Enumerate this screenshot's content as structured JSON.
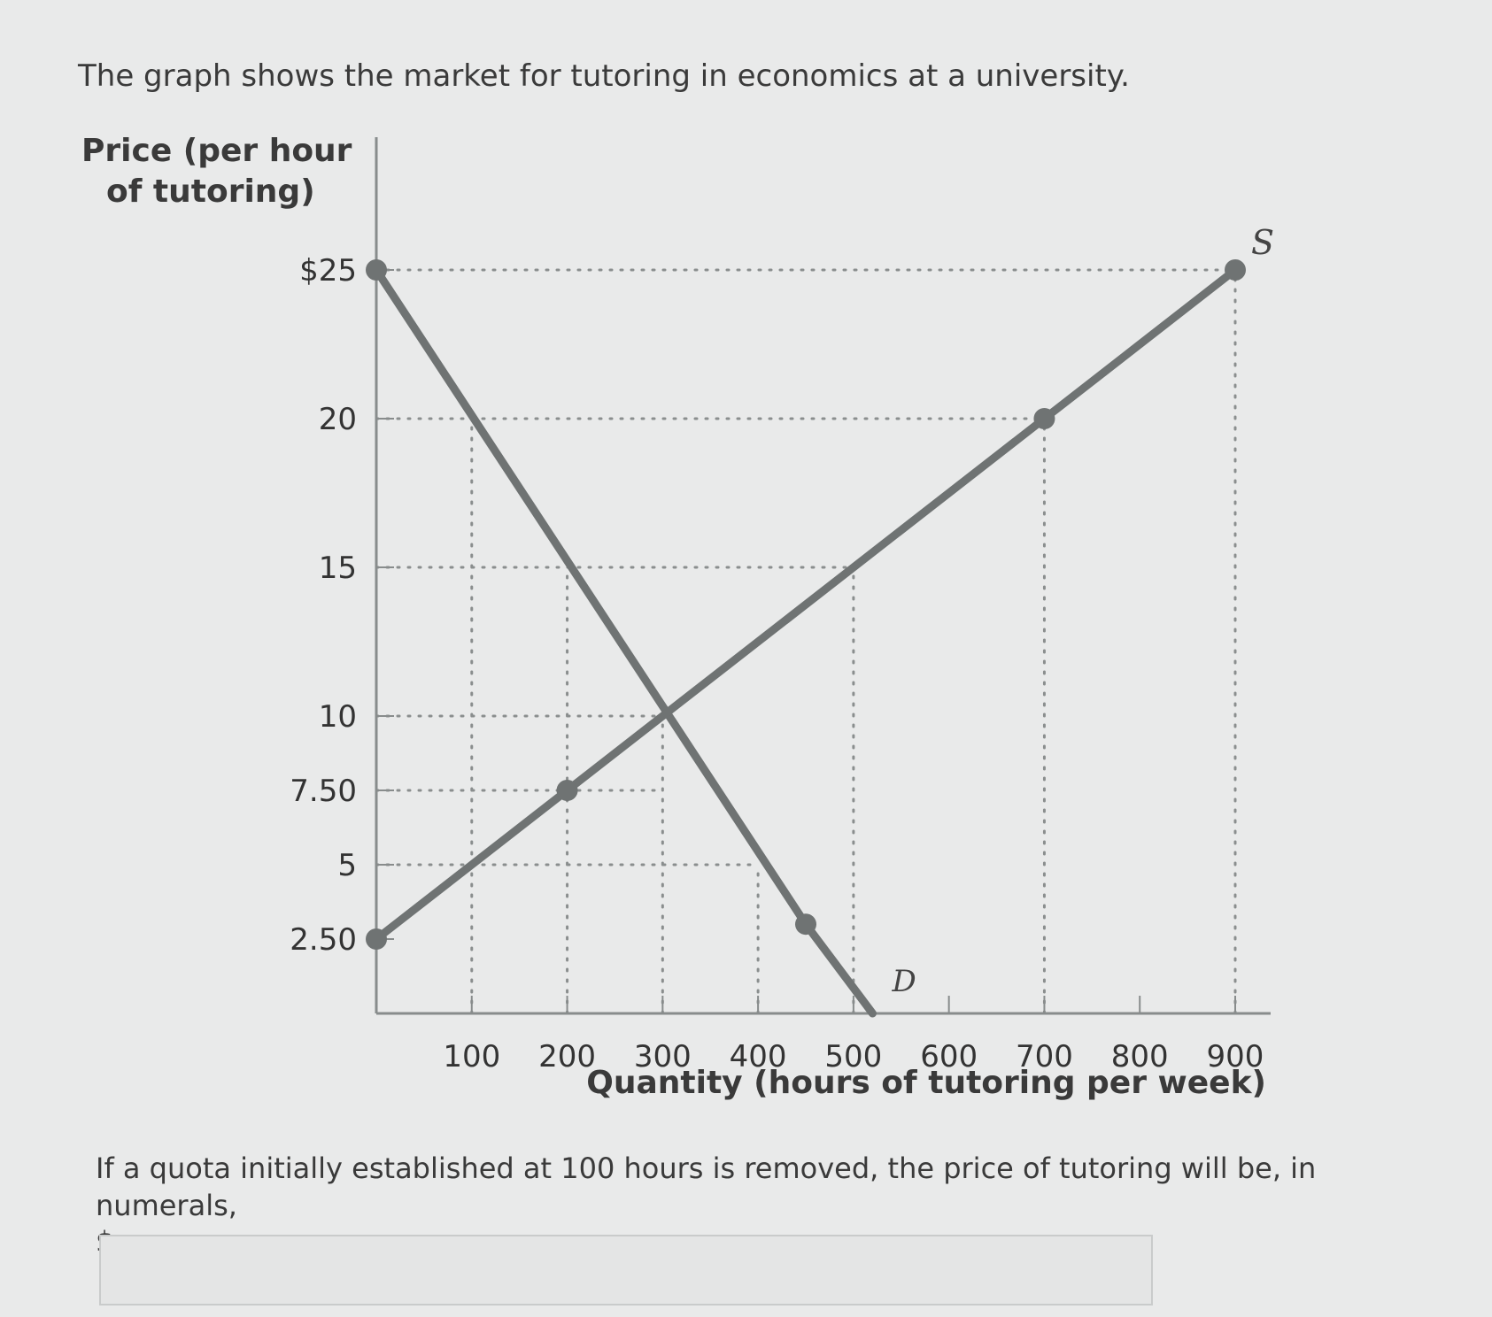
{
  "intro": "The graph shows the market for tutoring in economics at a university.",
  "question": {
    "text": "If a quota initially established at 100 hours is removed, the price of tutoring will be, in numerals,",
    "currency_prefix": "$",
    "end_punct": "."
  },
  "answer_input": {
    "value": "",
    "placeholder": ""
  },
  "chart_data": {
    "type": "line",
    "ylabel_line1": "Price (per hour",
    "ylabel_line2": "of tutoring)",
    "xlabel": "Quantity (hours of tutoring per week)",
    "xlim": [
      0,
      900
    ],
    "ylim": [
      0,
      25
    ],
    "x_ticks": [
      100,
      200,
      300,
      400,
      500,
      600,
      700,
      800,
      900
    ],
    "x_tick_labels": [
      "100",
      "200",
      "300",
      "400",
      "500",
      "600",
      "700",
      "800",
      "900"
    ],
    "y_ticks": [
      2.5,
      5,
      7.5,
      10,
      15,
      20,
      25
    ],
    "y_tick_labels": [
      "2.50",
      "5",
      "7.50",
      "10",
      "15",
      "20",
      "$25"
    ],
    "series": [
      {
        "name": "D",
        "points": [
          [
            0,
            25
          ],
          [
            450,
            3
          ],
          [
            520,
            0
          ]
        ]
      },
      {
        "name": "S",
        "points": [
          [
            0,
            2.5
          ],
          [
            200,
            7.5
          ],
          [
            700,
            20
          ],
          [
            900,
            25
          ]
        ]
      }
    ],
    "markers": [
      [
        0,
        25
      ],
      [
        450,
        3
      ],
      [
        0,
        2.5
      ],
      [
        200,
        7.5
      ],
      [
        700,
        20
      ],
      [
        900,
        25
      ]
    ],
    "guides": {
      "horizontal": [
        {
          "y": 25,
          "x_to": 900
        },
        {
          "y": 20,
          "x_to": 700
        },
        {
          "y": 15,
          "x_to": 500
        },
        {
          "y": 10,
          "x_to": 300
        },
        {
          "y": 7.5,
          "x_to": 300
        },
        {
          "y": 5,
          "x_to": 400
        }
      ],
      "vertical": [
        {
          "x": 100,
          "y_to": 20
        },
        {
          "x": 200,
          "y_to": 15
        },
        {
          "x": 300,
          "y_to": 10
        },
        {
          "x": 400,
          "y_to": 5
        },
        {
          "x": 500,
          "y_to": 15
        },
        {
          "x": 700,
          "y_to": 20
        },
        {
          "x": 900,
          "y_to": 25
        }
      ]
    },
    "colors": {
      "curve": "#6f7373",
      "guide": "#8a8e8e",
      "axis": "#888c8c",
      "text": "#333333"
    }
  }
}
